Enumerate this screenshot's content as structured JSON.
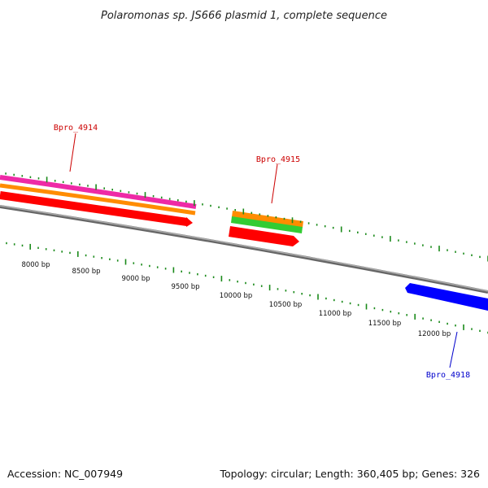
{
  "title": "Polaromonas sp. JS666 plasmid 1, complete sequence",
  "accession": "Accession: NC_007949",
  "summary": "Topology: circular; Length: 360,405 bp; Genes: 326",
  "colors": {
    "backbone": "#888888",
    "tick": "#1a8a1a",
    "magenta": "#ee2aa6",
    "orange": "#ff8c00",
    "green": "#33cc33",
    "red": "#ff0000",
    "blue": "#0000ff",
    "label_red": "#cc0000",
    "label_blue": "#0000cc"
  },
  "scale_labels": [
    "8000 bp",
    "8500 bp",
    "9000 bp",
    "9500 bp",
    "10000 bp",
    "10500 bp",
    "11000 bp",
    "11500 bp",
    "12000 bp"
  ],
  "genes": [
    {
      "label": "Bpro_4914",
      "color_key": "label_red"
    },
    {
      "label": "Bpro_4915",
      "color_key": "label_red"
    },
    {
      "label": "Bpro_4918",
      "color_key": "label_blue"
    }
  ]
}
